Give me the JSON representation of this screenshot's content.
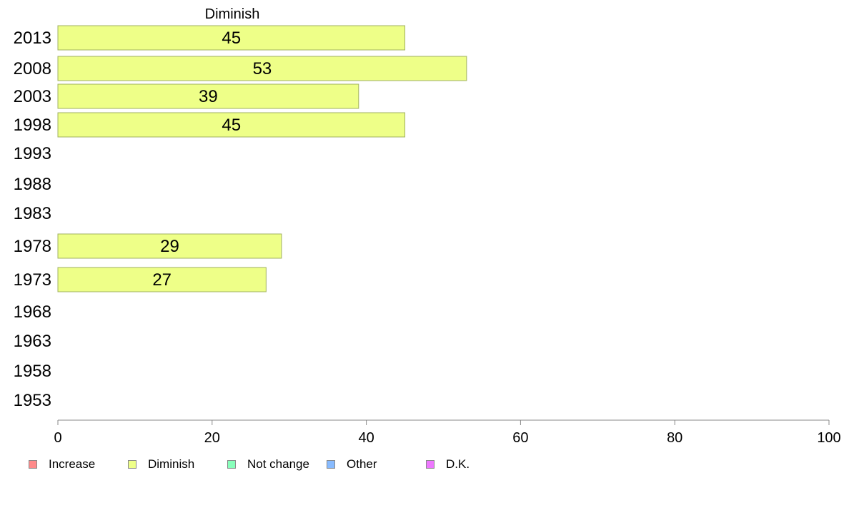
{
  "chart_data": {
    "type": "bar",
    "orientation": "horizontal",
    "title": "Diminish",
    "categories": [
      "2013",
      "2008",
      "2003",
      "1998",
      "1993",
      "1988",
      "1983",
      "1978",
      "1973",
      "1968",
      "1963",
      "1958",
      "1953"
    ],
    "series": [
      {
        "name": "Diminish",
        "color": "#eeff88",
        "values": [
          45,
          53,
          39,
          45,
          null,
          null,
          null,
          29,
          27,
          null,
          null,
          null,
          null
        ]
      }
    ],
    "data_labels": [
      "45",
      "53",
      "39",
      "45",
      "",
      "",
      "",
      "29",
      "27",
      "",
      "",
      "",
      ""
    ],
    "xlim": [
      0,
      100
    ],
    "xticks": [
      0,
      20,
      40,
      60,
      80,
      100
    ],
    "grid": false
  },
  "legend": {
    "placement": "bottom",
    "items": [
      {
        "label": "Increase",
        "color": "#ff8a8a"
      },
      {
        "label": "Diminish",
        "color": "#eeff88"
      },
      {
        "label": "Not change",
        "color": "#88ffbb"
      },
      {
        "label": "Other",
        "color": "#88bbff"
      },
      {
        "label": "D.K.",
        "color": "#ee77ff"
      }
    ]
  }
}
